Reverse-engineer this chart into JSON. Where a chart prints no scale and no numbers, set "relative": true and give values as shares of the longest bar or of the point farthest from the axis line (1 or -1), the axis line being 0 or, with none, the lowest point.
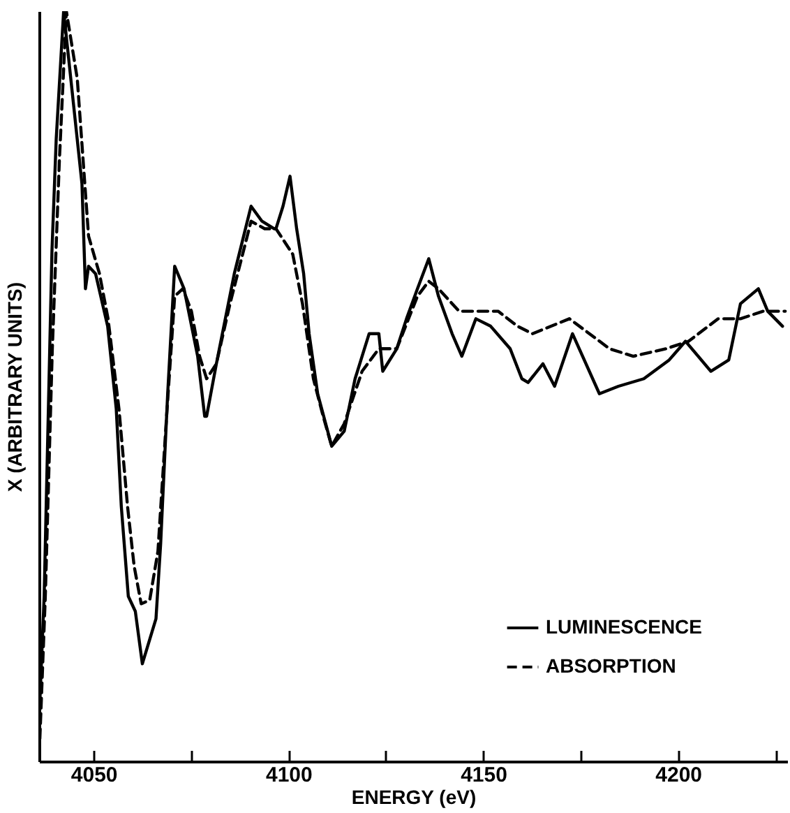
{
  "chart_data": {
    "type": "line",
    "relative": true,
    "xlabel": "ENERGY (eV)",
    "ylabel": "X (ARBITRARY UNITS)",
    "xlim": [
      4036,
      4228
    ],
    "xticks": [
      4050,
      {
        "value": 4075,
        "label": null
      },
      4100,
      {
        "value": 4125,
        "label": null
      },
      4150,
      {
        "value": 4175,
        "label": null
      },
      4200,
      {
        "value": 4225,
        "label": null
      }
    ],
    "legend": "bottom right",
    "grid": false,
    "marker": "none",
    "series": [
      {
        "name": "LUMINESCENCE",
        "color": "#000000",
        "line_style": "solid",
        "x": [
          4036.2,
          4037.3,
          4039.3,
          4040.4,
          4042.3,
          4047.0,
          4047.9,
          4048.7,
          4050.5,
          4053.6,
          4055.8,
          4057.1,
          4058.9,
          4060.7,
          4062.5,
          4066.0,
          4067.2,
          4069.0,
          4070.8,
          4073.2,
          4076.7,
          4078.5,
          4079.0,
          4081.5,
          4086.1,
          4090.4,
          4093.2,
          4096.3,
          4096.8,
          4098.6,
          4100.4,
          4102.1,
          4103.9,
          4105.3,
          4107.5,
          4111.1,
          4114.3,
          4117.1,
          4120.7,
          4123.2,
          4124.2,
          4127.8,
          4130.3,
          4133.1,
          4136.0,
          4138.5,
          4142.0,
          4144.5,
          4148.1,
          4151.9,
          4156.9,
          4159.9,
          4161.5,
          4165.3,
          4168.3,
          4172.9,
          4179.8,
          4184.7,
          4191.2,
          4197.7,
          4201.9,
          4208.4,
          4213.0,
          4216.0,
          4220.6,
          4223.0,
          4226.8
        ],
        "values": [
          0.08,
          0.22,
          0.68,
          0.83,
          1.0,
          0.77,
          0.63,
          0.66,
          0.65,
          0.58,
          0.47,
          0.34,
          0.22,
          0.2,
          0.13,
          0.19,
          0.29,
          0.49,
          0.66,
          0.63,
          0.54,
          0.46,
          0.46,
          0.53,
          0.65,
          0.74,
          0.72,
          0.71,
          0.71,
          0.74,
          0.78,
          0.71,
          0.65,
          0.57,
          0.49,
          0.42,
          0.44,
          0.51,
          0.57,
          0.57,
          0.52,
          0.55,
          0.59,
          0.63,
          0.67,
          0.62,
          0.57,
          0.54,
          0.59,
          0.58,
          0.55,
          0.51,
          0.505,
          0.53,
          0.5,
          0.57,
          0.49,
          0.5,
          0.51,
          0.535,
          0.56,
          0.52,
          0.535,
          0.61,
          0.63,
          0.6,
          0.58
        ]
      },
      {
        "name": "ABSORPTION",
        "color": "#000000",
        "line_style": "dashed",
        "x": [
          4036.2,
          4037.6,
          4039.4,
          4041.2,
          4043.0,
          4045.8,
          4048.7,
          4051.5,
          4053.7,
          4056.5,
          4058.7,
          4060.4,
          4062.2,
          4064.4,
          4066.5,
          4068.6,
          4070.8,
          4072.9,
          4075.1,
          4077.2,
          4079.0,
          4081.5,
          4085.0,
          4090.4,
          4093.9,
          4096.8,
          4101.1,
          4103.6,
          4106.4,
          4108.9,
          4111.1,
          4114.3,
          4118.9,
          4123.2,
          4127.8,
          4133.1,
          4136.0,
          4138.5,
          4143.8,
          4149.2,
          4153.8,
          4158.8,
          4162.6,
          4172.1,
          4182.4,
          4188.5,
          4196.9,
          4202.7,
          4210.3,
          4216.0,
          4221.8,
          4227.5
        ],
        "values": [
          0.03,
          0.22,
          0.55,
          0.8,
          1.0,
          0.91,
          0.7,
          0.65,
          0.59,
          0.47,
          0.34,
          0.26,
          0.21,
          0.215,
          0.28,
          0.45,
          0.62,
          0.63,
          0.6,
          0.54,
          0.51,
          0.53,
          0.61,
          0.72,
          0.71,
          0.71,
          0.676,
          0.61,
          0.51,
          0.46,
          0.42,
          0.45,
          0.52,
          0.55,
          0.55,
          0.62,
          0.64,
          0.63,
          0.6,
          0.6,
          0.6,
          0.58,
          0.57,
          0.59,
          0.55,
          0.54,
          0.55,
          0.56,
          0.59,
          0.59,
          0.6,
          0.6
        ]
      }
    ]
  }
}
